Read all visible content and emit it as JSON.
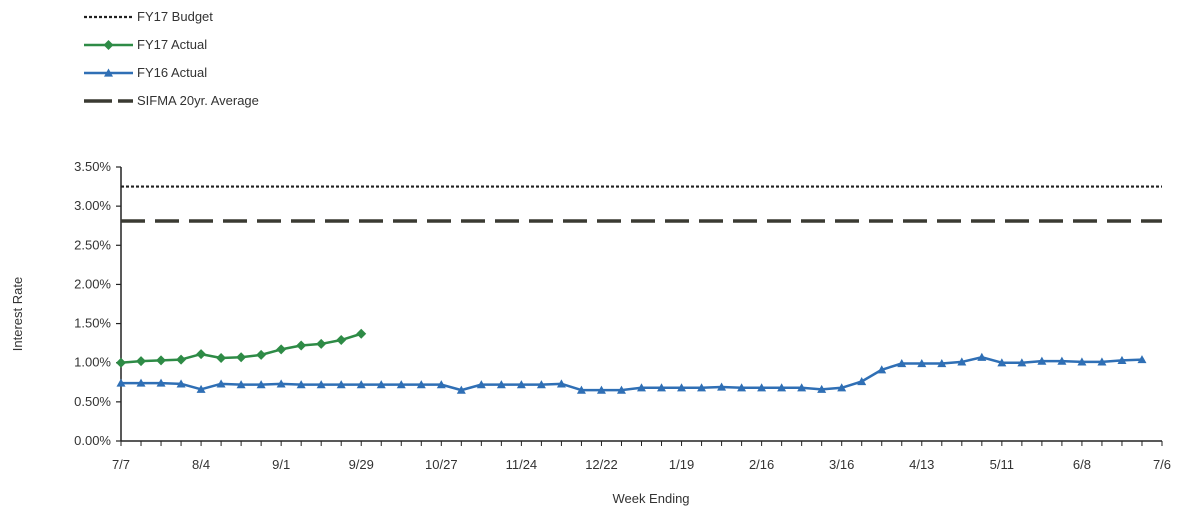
{
  "chart_data": {
    "type": "line",
    "xlabel": "Week Ending",
    "ylabel": "Interest Rate",
    "ylim": [
      0,
      0.035
    ],
    "yticks": [
      "0.00%",
      "0.50%",
      "1.00%",
      "1.50%",
      "2.00%",
      "2.50%",
      "3.00%",
      "3.50%"
    ],
    "xtick_labels": [
      "7/7",
      "8/4",
      "9/1",
      "9/29",
      "10/27",
      "11/24",
      "12/22",
      "1/19",
      "2/16",
      "3/16",
      "4/13",
      "5/11",
      "6/8",
      "7/6"
    ],
    "week_count": 53,
    "grid": false,
    "legend_position": "top-left",
    "series": [
      {
        "name": "FY17 Budget",
        "color": "#222222",
        "style": "dotted",
        "marker": "none",
        "weeks": [
          0,
          52
        ],
        "values": [
          0.0325,
          0.0325
        ]
      },
      {
        "name": "FY17 Actual",
        "color": "#2e8b46",
        "style": "solid",
        "marker": "diamond",
        "weeks": [
          0,
          1,
          2,
          3,
          4,
          5,
          6,
          7,
          8,
          9,
          10,
          11,
          12
        ],
        "values": [
          0.01,
          0.0102,
          0.0103,
          0.0104,
          0.0111,
          0.0106,
          0.0107,
          0.011,
          0.0117,
          0.0122,
          0.0124,
          0.0129,
          0.0137
        ]
      },
      {
        "name": "FY16 Actual",
        "color": "#2f6fb5",
        "style": "solid",
        "marker": "triangle",
        "weeks": [
          0,
          1,
          2,
          3,
          4,
          5,
          6,
          7,
          8,
          9,
          10,
          11,
          12,
          13,
          14,
          15,
          16,
          17,
          18,
          19,
          20,
          21,
          22,
          23,
          24,
          25,
          26,
          27,
          28,
          29,
          30,
          31,
          32,
          33,
          34,
          35,
          36,
          37,
          38,
          39,
          40,
          41,
          42,
          43,
          44,
          45,
          46,
          47,
          48,
          49,
          50,
          51
        ],
        "values": [
          0.0074,
          0.0074,
          0.0074,
          0.0073,
          0.0066,
          0.0073,
          0.0072,
          0.0072,
          0.0073,
          0.0072,
          0.0072,
          0.0072,
          0.0072,
          0.0072,
          0.0072,
          0.0072,
          0.0072,
          0.0065,
          0.0072,
          0.0072,
          0.0072,
          0.0072,
          0.0073,
          0.0065,
          0.0065,
          0.0065,
          0.0068,
          0.0068,
          0.0068,
          0.0068,
          0.0069,
          0.0068,
          0.0068,
          0.0068,
          0.0068,
          0.0066,
          0.0068,
          0.0076,
          0.0091,
          0.0099,
          0.0099,
          0.0099,
          0.0101,
          0.0107,
          0.01,
          0.01,
          0.0102,
          0.0102,
          0.0101,
          0.0101,
          0.0103,
          0.0104
        ]
      },
      {
        "name": "SIFMA 20yr. Average",
        "color": "#3a3a32",
        "style": "dashed",
        "marker": "none",
        "weeks": [
          0,
          52
        ],
        "values": [
          0.0281,
          0.0281
        ]
      }
    ]
  }
}
